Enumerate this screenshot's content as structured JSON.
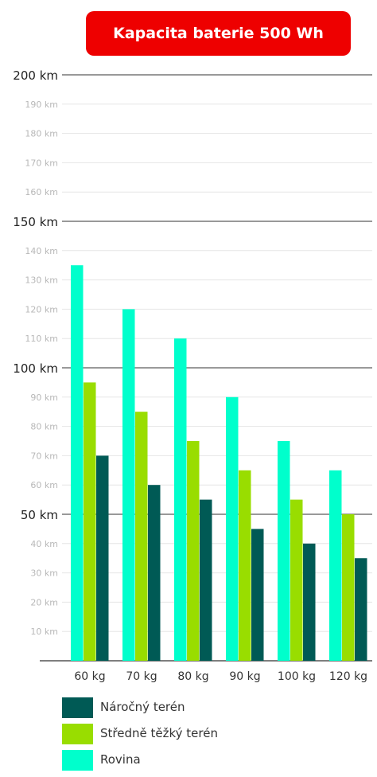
{
  "chart_data": {
    "type": "bar",
    "title": "Kapacita baterie 500 Wh",
    "categories": [
      "60 kg",
      "70 kg",
      "80 kg",
      "90 kg",
      "100 kg",
      "120 kg"
    ],
    "series": [
      {
        "name": "Rovina",
        "color": "#00ffcc",
        "values": [
          135,
          120,
          110,
          90,
          75,
          65
        ]
      },
      {
        "name": "Středně těžký terén",
        "color": "#99dd00",
        "values": [
          95,
          85,
          75,
          65,
          55,
          50
        ]
      },
      {
        "name": "Náročný terén",
        "color": "#005a55",
        "values": [
          70,
          60,
          55,
          45,
          40,
          35
        ]
      }
    ],
    "ylim": [
      0,
      200
    ],
    "y_ticks": [
      10,
      20,
      30,
      40,
      50,
      60,
      70,
      80,
      90,
      100,
      110,
      120,
      130,
      140,
      150,
      160,
      170,
      180,
      190,
      200
    ],
    "y_major_ticks": [
      50,
      100,
      150,
      200
    ],
    "y_unit": "km",
    "grid": true,
    "legend_position": "bottom-left",
    "legend_order": [
      "Náročný terén",
      "Středně těžký terén",
      "Rovina"
    ]
  },
  "colors": {
    "title_bg": "#ee0000",
    "major_grid": "#333333",
    "minor_grid": "#e6e6e6",
    "major_tick_text": "#222222",
    "minor_tick_text": "#b8b8b8"
  }
}
